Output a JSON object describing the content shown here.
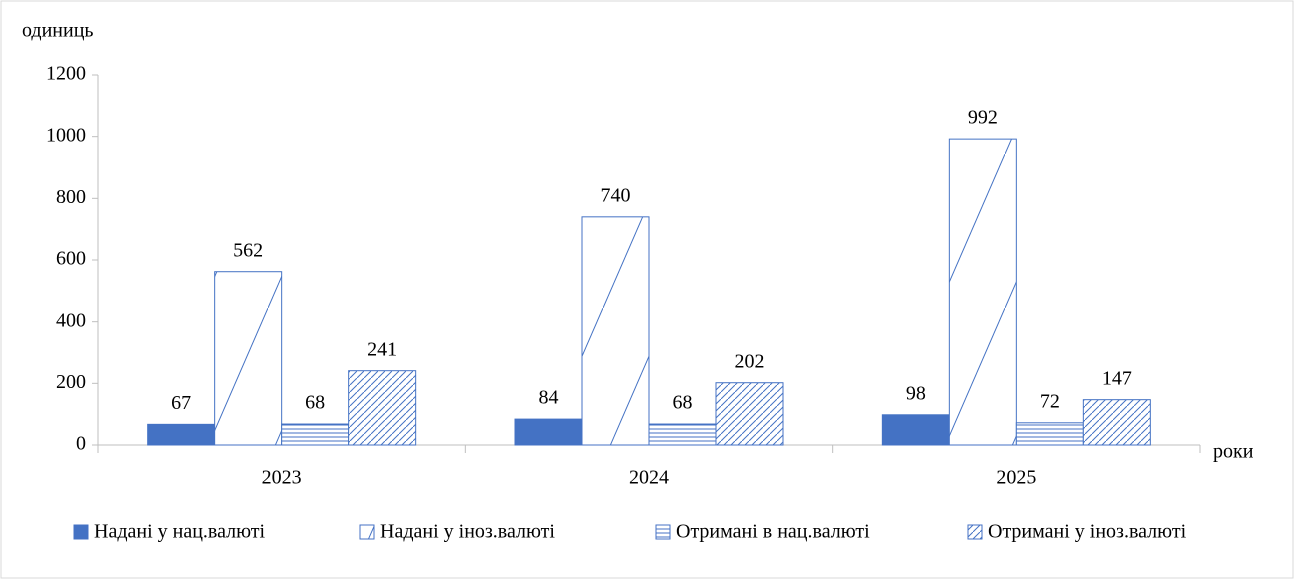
{
  "chart_data": {
    "type": "bar",
    "y_label": "одиниць",
    "x_label": "роки",
    "categories": [
      "2023",
      "2024",
      "2025"
    ],
    "series": [
      {
        "name": "Надані у нац.валюті",
        "color": "#4472c4",
        "pattern": "solid",
        "values": [
          67,
          84,
          98
        ]
      },
      {
        "name": "Надані у іноз.валюті",
        "color": "#4472c4",
        "pattern": "wide-diagonal",
        "values": [
          562,
          740,
          992
        ]
      },
      {
        "name": "Отримані в нац.валюті",
        "color": "#4472c4",
        "pattern": "horizontal",
        "values": [
          68,
          68,
          72
        ]
      },
      {
        "name": "Отримані у іноз.валюті",
        "color": "#4472c4",
        "pattern": "dense-diagonal",
        "values": [
          241,
          202,
          147
        ]
      }
    ],
    "ylim": [
      0,
      1200
    ],
    "yticks": [
      0,
      200,
      400,
      600,
      800,
      1000,
      1200
    ],
    "legend": "bottom"
  }
}
